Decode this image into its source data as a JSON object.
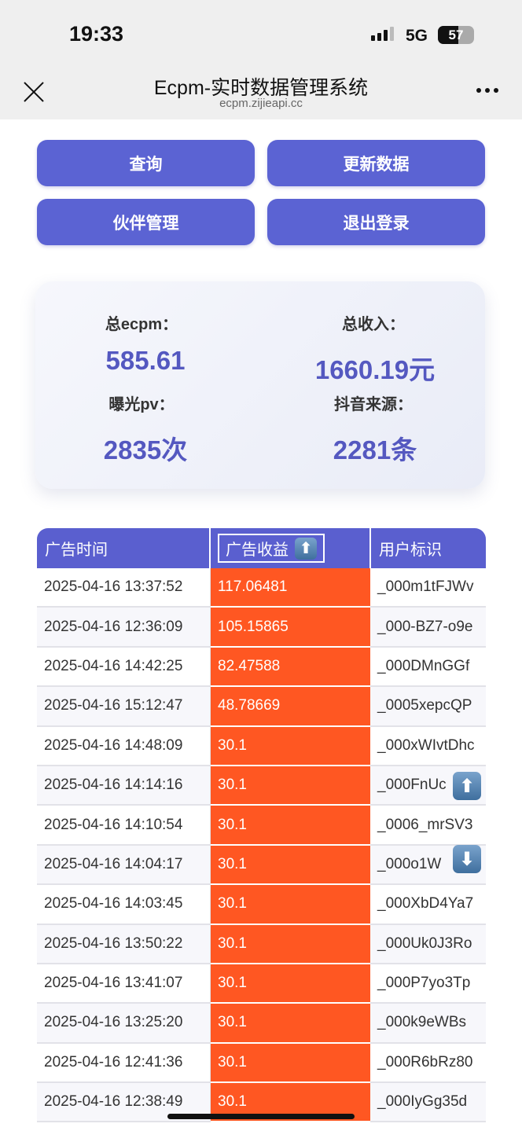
{
  "status_bar": {
    "time": "19:33",
    "network": "5G",
    "battery": "57",
    "battery_level": 57
  },
  "nav": {
    "title": "Ecpm-实时数据管理系统",
    "url": "ecpm.zijieapi.cc",
    "close_icon": "close-icon",
    "more_icon": "more-icon"
  },
  "buttons": {
    "query": "查询",
    "update": "更新数据",
    "partner": "伙伴管理",
    "logout": "退出登录"
  },
  "stats": {
    "ecpm_label": "总ecpm：",
    "ecpm_value": "585.61",
    "income_label": "总收入：",
    "income_value": "1660.19元",
    "pv_label": "曝光pv：",
    "pv_value": "2835次",
    "source_label": "抖音来源：",
    "source_value": "2281条"
  },
  "table": {
    "headers": [
      "广告时间",
      "广告收益",
      "用户标识"
    ],
    "sort_icon": "⬆",
    "rows": [
      [
        "2025-04-16 13:37:52",
        "117.06481",
        "_000m1tFJWv"
      ],
      [
        "2025-04-16 12:36:09",
        "105.15865",
        "_000-BZ7-o9e"
      ],
      [
        "2025-04-16 14:42:25",
        "82.47588",
        "_000DMnGGf"
      ],
      [
        "2025-04-16 15:12:47",
        "48.78669",
        "_0005xepcQP"
      ],
      [
        "2025-04-16 14:48:09",
        "30.1",
        "_000xWIvtDhc"
      ],
      [
        "2025-04-16 14:14:16",
        "30.1",
        "_000FnUc"
      ],
      [
        "2025-04-16 14:10:54",
        "30.1",
        "_0006_mrSV3"
      ],
      [
        "2025-04-16 14:04:17",
        "30.1",
        "_000o1W"
      ],
      [
        "2025-04-16 14:03:45",
        "30.1",
        "_000XbD4Ya7"
      ],
      [
        "2025-04-16 13:50:22",
        "30.1",
        "_000Uk0J3Ro"
      ],
      [
        "2025-04-16 13:41:07",
        "30.1",
        "_000P7yo3Tp"
      ],
      [
        "2025-04-16 13:25:20",
        "30.1",
        "_000k9eWBs"
      ],
      [
        "2025-04-16 12:41:36",
        "30.1",
        "_000R6bRz80"
      ],
      [
        "2025-04-16 12:38:49",
        "30.1",
        "_000IyGg35d"
      ]
    ]
  },
  "floating": {
    "up": "⬆",
    "down": "⬇"
  },
  "colors": {
    "primary": "#5b63d3",
    "highlight": "#ff5722"
  }
}
